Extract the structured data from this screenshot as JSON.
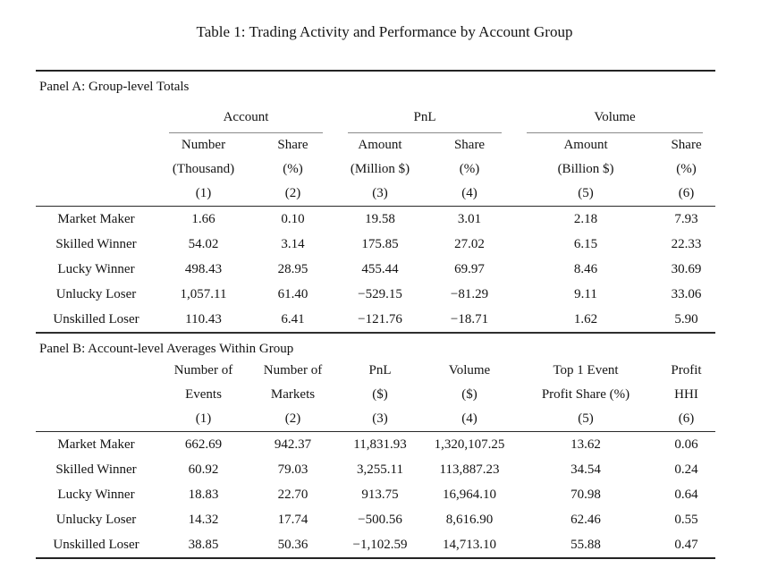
{
  "title": "Table 1: Trading Activity and Performance by Account Group",
  "colors": {
    "text": "#141414",
    "heavy_rule": "#232323",
    "mid_rule": "#2a2a2a",
    "cmidrule": "#8a8a8a"
  },
  "panelA": {
    "label": "Panel A: Group-level Totals",
    "spanners": [
      "Account",
      "PnL",
      "Volume"
    ],
    "col_headers": [
      {
        "line1": "Number",
        "line2": "(Thousand)",
        "line3": "(1)"
      },
      {
        "line1": "Share",
        "line2": "(%)",
        "line3": "(2)"
      },
      {
        "line1": "Amount",
        "line2": "(Million $)",
        "line3": "(3)"
      },
      {
        "line1": "Share",
        "line2": "(%)",
        "line3": "(4)"
      },
      {
        "line1": "Amount",
        "line2": "(Billion $)",
        "line3": "(5)"
      },
      {
        "line1": "Share",
        "line2": "(%)",
        "line3": "(6)"
      }
    ],
    "rows": [
      {
        "label": "Market Maker",
        "values": [
          "1.66",
          "0.10",
          "19.58",
          "3.01",
          "2.18",
          "7.93"
        ]
      },
      {
        "label": "Skilled Winner",
        "values": [
          "54.02",
          "3.14",
          "175.85",
          "27.02",
          "6.15",
          "22.33"
        ]
      },
      {
        "label": "Lucky Winner",
        "values": [
          "498.43",
          "28.95",
          "455.44",
          "69.97",
          "8.46",
          "30.69"
        ]
      },
      {
        "label": "Unlucky Loser",
        "values": [
          "1,057.11",
          "61.40",
          "−529.15",
          "−81.29",
          "9.11",
          "33.06"
        ]
      },
      {
        "label": "Unskilled Loser",
        "values": [
          "110.43",
          "6.41",
          "−121.76",
          "−18.71",
          "1.62",
          "5.90"
        ]
      }
    ]
  },
  "panelB": {
    "label": "Panel B: Account-level Averages Within Group",
    "col_headers": [
      {
        "line1": "Number of",
        "line2": "Events",
        "line3": "(1)"
      },
      {
        "line1": "Number of",
        "line2": "Markets",
        "line3": "(2)"
      },
      {
        "line1": "PnL",
        "line2": "($)",
        "line3": "(3)"
      },
      {
        "line1": "Volume",
        "line2": "($)",
        "line3": "(4)"
      },
      {
        "line1": "Top 1 Event",
        "line2": "Profit Share (%)",
        "line3": "(5)"
      },
      {
        "line1": "Profit",
        "line2": "HHI",
        "line3": "(6)"
      }
    ],
    "rows": [
      {
        "label": "Market Maker",
        "values": [
          "662.69",
          "942.37",
          "11,831.93",
          "1,320,107.25",
          "13.62",
          "0.06"
        ]
      },
      {
        "label": "Skilled Winner",
        "values": [
          "60.92",
          "79.03",
          "3,255.11",
          "113,887.23",
          "34.54",
          "0.24"
        ]
      },
      {
        "label": "Lucky Winner",
        "values": [
          "18.83",
          "22.70",
          "913.75",
          "16,964.10",
          "70.98",
          "0.64"
        ]
      },
      {
        "label": "Unlucky Loser",
        "values": [
          "14.32",
          "17.74",
          "−500.56",
          "8,616.90",
          "62.46",
          "0.55"
        ]
      },
      {
        "label": "Unskilled Loser",
        "values": [
          "38.85",
          "50.36",
          "−1,102.59",
          "14,713.10",
          "55.88",
          "0.47"
        ]
      }
    ]
  }
}
